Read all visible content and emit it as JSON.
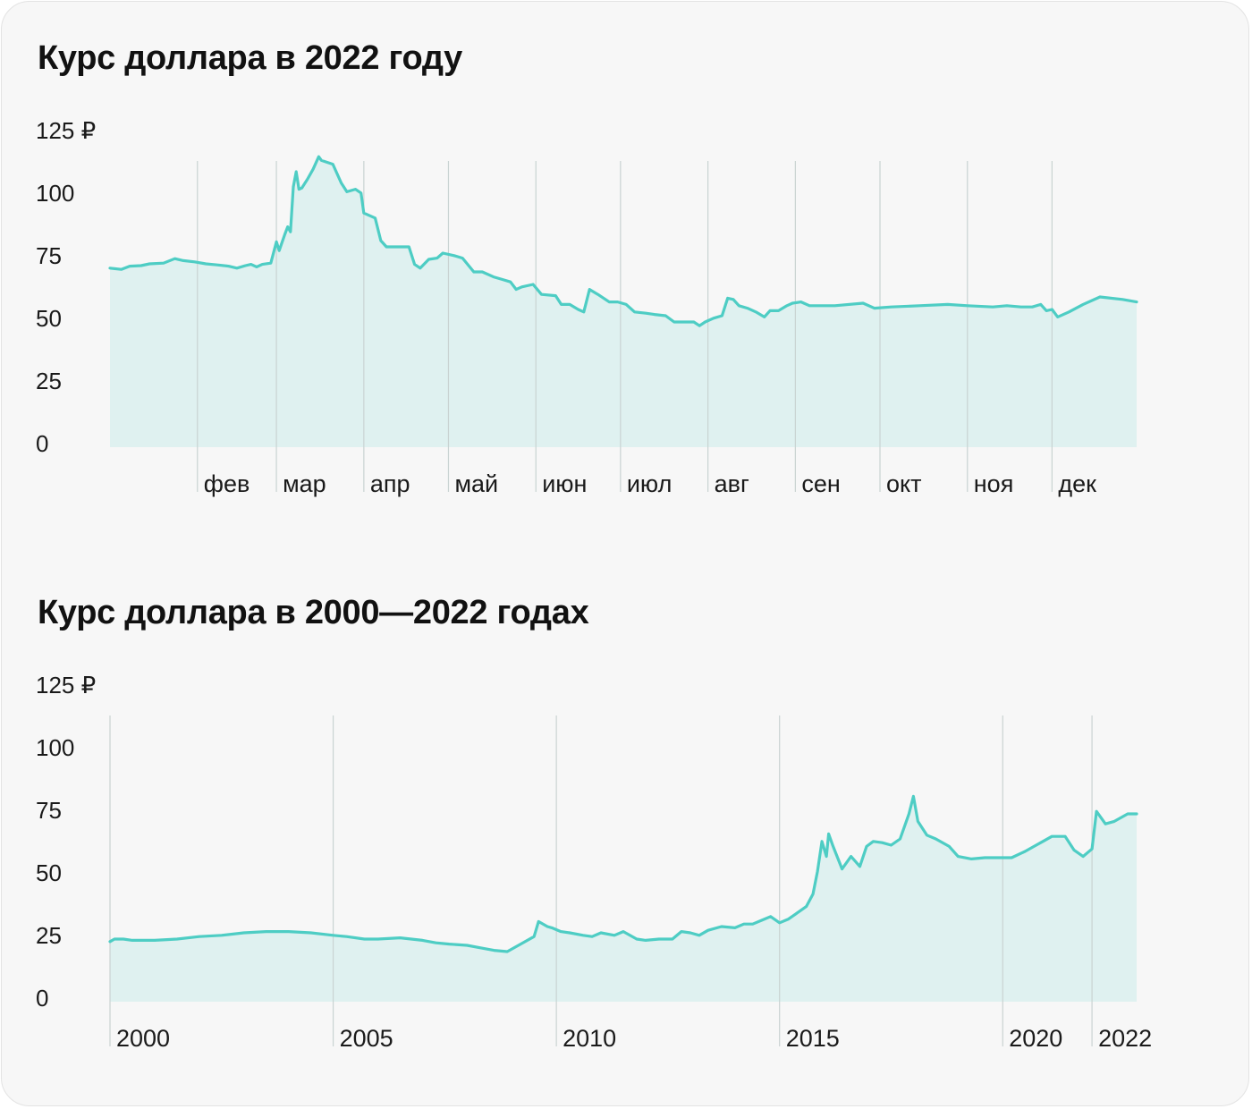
{
  "chart_data": [
    {
      "type": "area",
      "title": "Курс доллара в 2022 году",
      "y_ticks": [
        "0",
        "25",
        "50",
        "75",
        "100",
        "125 ₽"
      ],
      "y_tick_values": [
        0,
        25,
        50,
        75,
        100,
        125
      ],
      "ylim": [
        0,
        125
      ],
      "xlim": [
        "2022-01-01",
        "2022-12-31"
      ],
      "x_ticks": [
        {
          "date": "2022-02-01",
          "label": "фев"
        },
        {
          "date": "2022-03-01",
          "label": "мар"
        },
        {
          "date": "2022-04-01",
          "label": "апр"
        },
        {
          "date": "2022-05-01",
          "label": "май"
        },
        {
          "date": "2022-06-01",
          "label": "июн"
        },
        {
          "date": "2022-07-01",
          "label": "июл"
        },
        {
          "date": "2022-08-01",
          "label": "авг"
        },
        {
          "date": "2022-09-01",
          "label": "сен"
        },
        {
          "date": "2022-10-01",
          "label": "окт"
        },
        {
          "date": "2022-11-01",
          "label": "ноя"
        },
        {
          "date": "2022-12-01",
          "label": "дек"
        }
      ],
      "grid": "vertical lines at month starts",
      "legend": "none",
      "points": [
        [
          "2022-01-01",
          71.5
        ],
        [
          "2022-01-05",
          71.0
        ],
        [
          "2022-01-08",
          72.3
        ],
        [
          "2022-01-12",
          72.5
        ],
        [
          "2022-01-15",
          73.2
        ],
        [
          "2022-01-20",
          73.5
        ],
        [
          "2022-01-24",
          75.3
        ],
        [
          "2022-01-27",
          74.5
        ],
        [
          "2022-01-31",
          74.0
        ],
        [
          "2022-02-04",
          73.2
        ],
        [
          "2022-02-08",
          72.8
        ],
        [
          "2022-02-12",
          72.3
        ],
        [
          "2022-02-15",
          71.5
        ],
        [
          "2022-02-18",
          72.5
        ],
        [
          "2022-02-20",
          73.0
        ],
        [
          "2022-02-22",
          72.0
        ],
        [
          "2022-02-24",
          73.0
        ],
        [
          "2022-02-27",
          73.5
        ],
        [
          "2022-03-01",
          82.0
        ],
        [
          "2022-03-02",
          78.5
        ],
        [
          "2022-03-04",
          85.0
        ],
        [
          "2022-03-05",
          88.0
        ],
        [
          "2022-03-06",
          86.0
        ],
        [
          "2022-03-07",
          104.0
        ],
        [
          "2022-03-08",
          110.0
        ],
        [
          "2022-03-09",
          103.0
        ],
        [
          "2022-03-10",
          103.5
        ],
        [
          "2022-03-12",
          107.0
        ],
        [
          "2022-03-14",
          111.0
        ],
        [
          "2022-03-16",
          116.0
        ],
        [
          "2022-03-17",
          114.5
        ],
        [
          "2022-03-21",
          113.0
        ],
        [
          "2022-03-24",
          105.5
        ],
        [
          "2022-03-26",
          102.0
        ],
        [
          "2022-03-29",
          103.0
        ],
        [
          "2022-03-31",
          101.5
        ],
        [
          "2022-04-01",
          93.5
        ],
        [
          "2022-04-05",
          91.5
        ],
        [
          "2022-04-07",
          82.5
        ],
        [
          "2022-04-09",
          80.0
        ],
        [
          "2022-04-14",
          80.0
        ],
        [
          "2022-04-17",
          80.0
        ],
        [
          "2022-04-19",
          73.0
        ],
        [
          "2022-04-21",
          71.5
        ],
        [
          "2022-04-24",
          75.0
        ],
        [
          "2022-04-27",
          75.5
        ],
        [
          "2022-04-29",
          77.5
        ],
        [
          "2022-05-03",
          76.5
        ],
        [
          "2022-05-06",
          75.5
        ],
        [
          "2022-05-10",
          70.0
        ],
        [
          "2022-05-13",
          70.0
        ],
        [
          "2022-05-17",
          68.0
        ],
        [
          "2022-05-20",
          67.0
        ],
        [
          "2022-05-23",
          66.0
        ],
        [
          "2022-05-25",
          63.0
        ],
        [
          "2022-05-27",
          64.0
        ],
        [
          "2022-05-31",
          65.0
        ],
        [
          "2022-06-03",
          61.0
        ],
        [
          "2022-06-08",
          60.5
        ],
        [
          "2022-06-10",
          57.0
        ],
        [
          "2022-06-13",
          57.0
        ],
        [
          "2022-06-16",
          55.0
        ],
        [
          "2022-06-18",
          54.0
        ],
        [
          "2022-06-20",
          63.0
        ],
        [
          "2022-06-23",
          61.0
        ],
        [
          "2022-06-27",
          58.0
        ],
        [
          "2022-06-30",
          58.0
        ],
        [
          "2022-07-03",
          57.0
        ],
        [
          "2022-07-06",
          54.0
        ],
        [
          "2022-07-10",
          53.5
        ],
        [
          "2022-07-13",
          53.0
        ],
        [
          "2022-07-17",
          52.5
        ],
        [
          "2022-07-20",
          50.0
        ],
        [
          "2022-07-24",
          50.0
        ],
        [
          "2022-07-27",
          50.0
        ],
        [
          "2022-07-29",
          48.5
        ],
        [
          "2022-07-31",
          50.0
        ],
        [
          "2022-08-03",
          51.5
        ],
        [
          "2022-08-06",
          52.5
        ],
        [
          "2022-08-08",
          59.5
        ],
        [
          "2022-08-10",
          59.0
        ],
        [
          "2022-08-12",
          56.5
        ],
        [
          "2022-08-15",
          55.5
        ],
        [
          "2022-08-18",
          54.0
        ],
        [
          "2022-08-21",
          52.0
        ],
        [
          "2022-08-23",
          54.5
        ],
        [
          "2022-08-26",
          54.5
        ],
        [
          "2022-08-29",
          56.5
        ],
        [
          "2022-08-31",
          57.5
        ],
        [
          "2022-09-03",
          58.0
        ],
        [
          "2022-09-06",
          56.5
        ],
        [
          "2022-09-15",
          56.5
        ],
        [
          "2022-09-25",
          57.5
        ],
        [
          "2022-09-29",
          55.5
        ],
        [
          "2022-10-05",
          56.0
        ],
        [
          "2022-10-15",
          56.5
        ],
        [
          "2022-10-25",
          57.0
        ],
        [
          "2022-11-01",
          56.5
        ],
        [
          "2022-11-10",
          56.0
        ],
        [
          "2022-11-15",
          56.5
        ],
        [
          "2022-11-20",
          56.0
        ],
        [
          "2022-11-24",
          56.0
        ],
        [
          "2022-11-27",
          57.0
        ],
        [
          "2022-11-29",
          54.5
        ],
        [
          "2022-12-01",
          55.0
        ],
        [
          "2022-12-03",
          52.0
        ],
        [
          "2022-12-07",
          54.0
        ],
        [
          "2022-12-12",
          57.0
        ],
        [
          "2022-12-18",
          60.0
        ],
        [
          "2022-12-26",
          59.0
        ],
        [
          "2022-12-31",
          58.0
        ]
      ]
    },
    {
      "type": "area",
      "title": "Курс доллара в 2000—2022 годах",
      "y_ticks": [
        "0",
        "25",
        "50",
        "75",
        "100",
        "125 ₽"
      ],
      "y_tick_values": [
        0,
        25,
        50,
        75,
        100,
        125
      ],
      "ylim": [
        0,
        125
      ],
      "xlim": [
        2000.0,
        2023.0
      ],
      "x_ticks": [
        {
          "year": 2000,
          "label": "2000"
        },
        {
          "year": 2005,
          "label": "2005"
        },
        {
          "year": 2010,
          "label": "2010"
        },
        {
          "year": 2015,
          "label": "2015"
        },
        {
          "year": 2020,
          "label": "2020"
        },
        {
          "year": 2022,
          "label": "2022"
        }
      ],
      "grid": "vertical lines at labelled years",
      "legend": "none",
      "points": [
        [
          2000.0,
          24.0
        ],
        [
          2000.1,
          25.0
        ],
        [
          2000.3,
          25.0
        ],
        [
          2000.5,
          24.5
        ],
        [
          2001.0,
          24.5
        ],
        [
          2001.5,
          25.0
        ],
        [
          2002.0,
          26.0
        ],
        [
          2002.5,
          26.5
        ],
        [
          2003.0,
          27.5
        ],
        [
          2003.5,
          28.0
        ],
        [
          2004.0,
          28.0
        ],
        [
          2004.5,
          27.5
        ],
        [
          2005.0,
          26.5
        ],
        [
          2005.3,
          26.0
        ],
        [
          2005.7,
          25.0
        ],
        [
          2006.0,
          25.0
        ],
        [
          2006.5,
          25.5
        ],
        [
          2007.0,
          24.5
        ],
        [
          2007.3,
          23.5
        ],
        [
          2007.6,
          23.0
        ],
        [
          2008.0,
          22.5
        ],
        [
          2008.3,
          21.5
        ],
        [
          2008.6,
          20.5
        ],
        [
          2008.9,
          20.0
        ],
        [
          2009.2,
          23.0
        ],
        [
          2009.5,
          26.0
        ],
        [
          2009.6,
          32.0
        ],
        [
          2009.8,
          30.0
        ],
        [
          2009.9,
          29.5
        ],
        [
          2010.1,
          28.0
        ],
        [
          2010.3,
          27.5
        ],
        [
          2010.6,
          26.5
        ],
        [
          2010.8,
          26.0
        ],
        [
          2011.0,
          27.5
        ],
        [
          2011.3,
          26.5
        ],
        [
          2011.5,
          28.0
        ],
        [
          2011.8,
          25.0
        ],
        [
          2012.0,
          24.5
        ],
        [
          2012.3,
          25.0
        ],
        [
          2012.6,
          25.0
        ],
        [
          2012.8,
          28.0
        ],
        [
          2013.0,
          27.5
        ],
        [
          2013.2,
          26.5
        ],
        [
          2013.4,
          28.5
        ],
        [
          2013.7,
          30.0
        ],
        [
          2014.0,
          29.5
        ],
        [
          2014.2,
          31.0
        ],
        [
          2014.4,
          31.0
        ],
        [
          2014.6,
          32.5
        ],
        [
          2014.8,
          34.0
        ],
        [
          2015.0,
          31.5
        ],
        [
          2015.2,
          33.0
        ],
        [
          2015.4,
          35.5
        ],
        [
          2015.6,
          38.0
        ],
        [
          2015.75,
          43.0
        ],
        [
          2015.85,
          52.0
        ],
        [
          2015.95,
          64.0
        ],
        [
          2016.05,
          58.0
        ],
        [
          2016.1,
          67.0
        ],
        [
          2016.2,
          62.0
        ],
        [
          2016.4,
          53.0
        ],
        [
          2016.6,
          58.0
        ],
        [
          2016.8,
          54.0
        ],
        [
          2016.95,
          62.0
        ],
        [
          2017.1,
          64.0
        ],
        [
          2017.3,
          63.5
        ],
        [
          2017.5,
          62.5
        ],
        [
          2017.7,
          65.0
        ],
        [
          2017.9,
          75.0
        ],
        [
          2018.0,
          82.0
        ],
        [
          2018.1,
          72.0
        ],
        [
          2018.3,
          66.5
        ],
        [
          2018.5,
          65.0
        ],
        [
          2018.8,
          62.0
        ],
        [
          2019.0,
          58.0
        ],
        [
          2019.3,
          57.0
        ],
        [
          2019.6,
          57.5
        ],
        [
          2019.9,
          57.5
        ],
        [
          2020.2,
          57.5
        ],
        [
          2020.5,
          60.0
        ],
        [
          2020.7,
          62.0
        ],
        [
          2020.9,
          64.0
        ],
        [
          2021.1,
          66.0
        ],
        [
          2021.4,
          66.0
        ],
        [
          2021.6,
          60.5
        ],
        [
          2021.8,
          58.0
        ],
        [
          2022.0,
          61.0
        ],
        [
          2022.1,
          76.0
        ],
        [
          2022.3,
          71.0
        ],
        [
          2022.5,
          72.0
        ],
        [
          2022.8,
          75.0
        ],
        [
          2023.0,
          75.0
        ]
      ]
    }
  ]
}
